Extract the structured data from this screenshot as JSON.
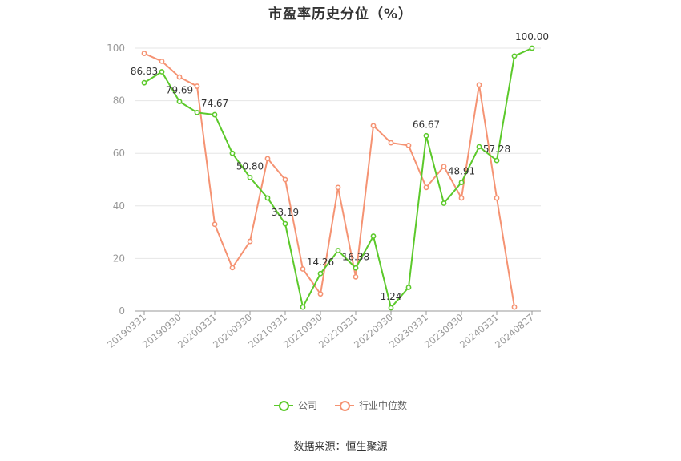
{
  "title": "市盈率历史分位（%）",
  "source": "数据来源：恒生聚源",
  "colors": {
    "company": "#5cc92b",
    "industry": "#f59373",
    "grid": "#e6e6e6",
    "axis": "#999999",
    "label": "#333333",
    "tick": "#999999"
  },
  "chart_data": {
    "type": "line",
    "title": "市盈率历史分位（%）",
    "ylim": [
      0,
      100
    ],
    "yticks": [
      0,
      20,
      40,
      60,
      80,
      100
    ],
    "grid": true,
    "legend_position": "bottom",
    "x": [
      "20190331",
      "20190630",
      "20190930",
      "20191231",
      "20200331",
      "20200630",
      "20200930",
      "20201231",
      "20210331",
      "20210630",
      "20210930",
      "20211231",
      "20220331",
      "20220630",
      "20220930",
      "20221231",
      "20230331",
      "20230630",
      "20230930",
      "20231231",
      "20240331",
      "20240630",
      "20240827"
    ],
    "xtick_labels": [
      "20190331",
      "20190930",
      "20200331",
      "20200930",
      "20210331",
      "20210930",
      "20220331",
      "20220930",
      "20230331",
      "20230930",
      "20240331",
      "20240827"
    ],
    "series": [
      {
        "name": "公司",
        "values": [
          86.83,
          91,
          79.69,
          75.5,
          74.67,
          60,
          50.8,
          43,
          33.19,
          1.5,
          14.26,
          23,
          16.38,
          28.5,
          1.24,
          9,
          66.67,
          41,
          48.91,
          62.5,
          57.28,
          97,
          100.0
        ],
        "labels": [
          "86.83",
          "",
          "79.69",
          "",
          "74.67",
          "",
          "50.80",
          "",
          "33.19",
          "",
          "14.26",
          "",
          "16.38",
          "",
          "1.24",
          "",
          "66.67",
          "",
          "48.91",
          "",
          "57.28",
          "",
          "100.00"
        ]
      },
      {
        "name": "行业中位数",
        "values": [
          98,
          95,
          89,
          85.5,
          33,
          16.5,
          26.5,
          58,
          50,
          16,
          6.5,
          47,
          13,
          70.5,
          64,
          63,
          47,
          55,
          43,
          86,
          43,
          1.5,
          null
        ]
      }
    ]
  }
}
